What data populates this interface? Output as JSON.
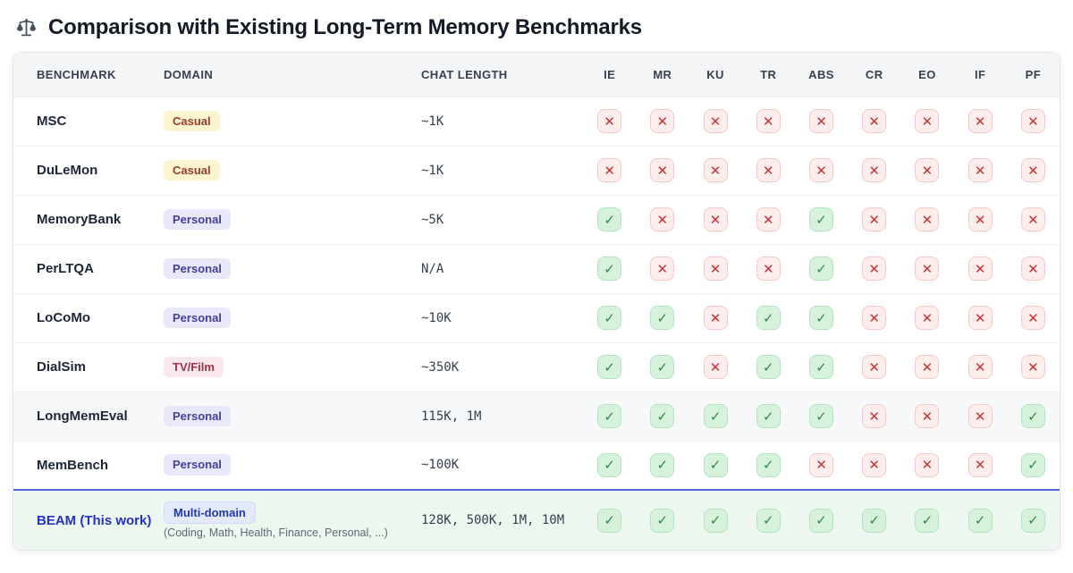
{
  "title": "Comparison with Existing Long-Term Memory Benchmarks",
  "title_icon": "balance-scales",
  "icons": {
    "check": "✓",
    "cross": "✕"
  },
  "colors": {
    "check_bg": "#d7f2dc",
    "check_fg": "#2e8b44",
    "cross_bg": "#fdeeed",
    "cross_fg": "#c63434",
    "beam_row_bg": "#edf6ef",
    "beam_accent": "#4c6be0",
    "beam_text": "#2433c0",
    "badge_casual_bg": "#fcf3cf",
    "badge_personal_bg": "#e9e8fa",
    "badge_tvfilm_bg": "#fbe8ec",
    "badge_multi_bg": "#e3e9fb"
  },
  "table": {
    "columns": [
      "BENCHMARK",
      "DOMAIN",
      "CHAT LENGTH",
      "IE",
      "MR",
      "KU",
      "TR",
      "ABS",
      "CR",
      "EO",
      "IF",
      "PF"
    ],
    "rows": [
      {
        "benchmark": "MSC",
        "domain": "Casual",
        "domain_type": "casual",
        "chat_length": "~1K",
        "marks": [
          "no",
          "no",
          "no",
          "no",
          "no",
          "no",
          "no",
          "no",
          "no"
        ],
        "variant": "default"
      },
      {
        "benchmark": "DuLeMon",
        "domain": "Casual",
        "domain_type": "casual",
        "chat_length": "~1K",
        "marks": [
          "no",
          "no",
          "no",
          "no",
          "no",
          "no",
          "no",
          "no",
          "no"
        ],
        "variant": "default"
      },
      {
        "benchmark": "MemoryBank",
        "domain": "Personal",
        "domain_type": "personal",
        "chat_length": "~5K",
        "marks": [
          "yes",
          "no",
          "no",
          "no",
          "yes",
          "no",
          "no",
          "no",
          "no"
        ],
        "variant": "default"
      },
      {
        "benchmark": "PerLTQA",
        "domain": "Personal",
        "domain_type": "personal",
        "chat_length": "N/A",
        "marks": [
          "yes",
          "no",
          "no",
          "no",
          "yes",
          "no",
          "no",
          "no",
          "no"
        ],
        "variant": "default"
      },
      {
        "benchmark": "LoCoMo",
        "domain": "Personal",
        "domain_type": "personal",
        "chat_length": "~10K",
        "marks": [
          "yes",
          "yes",
          "no",
          "yes",
          "yes",
          "no",
          "no",
          "no",
          "no"
        ],
        "variant": "default"
      },
      {
        "benchmark": "DialSim",
        "domain": "TV/Film",
        "domain_type": "tvfilm",
        "chat_length": "~350K",
        "marks": [
          "yes",
          "yes",
          "no",
          "yes",
          "yes",
          "no",
          "no",
          "no",
          "no"
        ],
        "variant": "default"
      },
      {
        "benchmark": "LongMemEval",
        "domain": "Personal",
        "domain_type": "personal",
        "chat_length": "115K, 1M",
        "marks": [
          "yes",
          "yes",
          "yes",
          "yes",
          "yes",
          "no",
          "no",
          "no",
          "yes"
        ],
        "variant": "shaded"
      },
      {
        "benchmark": "MemBench",
        "domain": "Personal",
        "domain_type": "personal",
        "chat_length": "~100K",
        "marks": [
          "yes",
          "yes",
          "yes",
          "yes",
          "no",
          "no",
          "no",
          "no",
          "yes"
        ],
        "variant": "default"
      },
      {
        "benchmark": "BEAM (This work)",
        "domain": "Multi-domain",
        "domain_type": "multi",
        "domain_note": "(Coding, Math, Health, Finance, Personal, ...)",
        "chat_length": "128K, 500K, 1M, 10M",
        "marks": [
          "yes",
          "yes",
          "yes",
          "yes",
          "yes",
          "yes",
          "yes",
          "yes",
          "yes"
        ],
        "variant": "beam"
      }
    ]
  }
}
